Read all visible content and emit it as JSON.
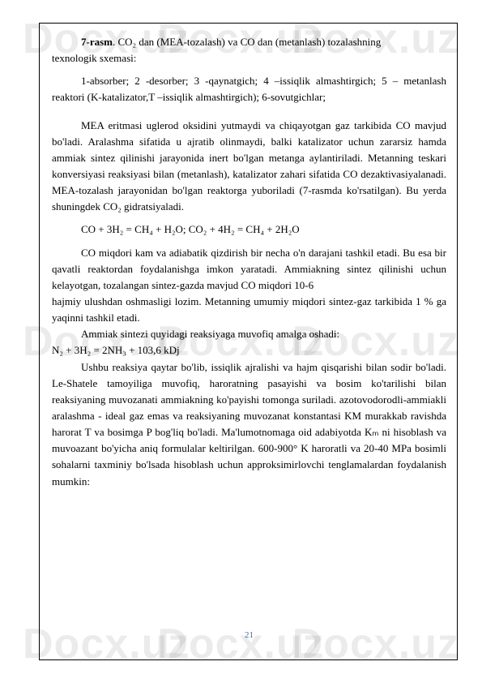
{
  "watermark": "Docx.uz",
  "pageNumber": "21",
  "caption": {
    "label": "7-rasm",
    "line1": ".   CO₂ dan (MEA-tozalash) va CO dan (metanlash) tozalashning",
    "line2": "texnologik sxemasi:"
  },
  "para1": "1-absorber; 2 -desorber; 3 -qaynatgich; 4 –issiqlik almashtirgich; 5 – metanlash reaktori (K-katalizator,T –issiqlik almashtirgich); 6-sovutgichlar;",
  "para2": "MEA eritmasi  uglerod  oksidini  yutmaydi  va  chiqayotgan gaz tarkibida CO mavjud bo'ladi. Aralashma sifatida  u ajratib olinmaydi, balki katalizator uchun zararsiz  hamda  ammiak  sintez  qilinishi  jarayonida  inert  bo'lgan  metanga aylantiriladi.   Metanning   teskari   konversiyasi  reaksiyasi   bilan   (metanlash), katalizator  zahari  sifatida  CO  dezaktivasiyalanadi.  MEA-tozalash  jarayonidan bo'lgan reaktorga yuboriladi (7-rasmda ko'rsatilgan). Bu yerda shuningdek CO₂ gidratsiyaladi.",
  "formula1": "CO + 3H₂ = CH₄ + H₂O;   CO₂ + 4H₂ = CH₄ + 2H₂O",
  "para3a": "CO miqdori kam va adiabatik qizdirish bir necha o'n darajani tashkil  etadi. Bu esa bir qavatli reaktordan  foydalanishga  imkon yaratadi. Ammiakning sintez qilinishi uchun kelayotgan, tozalangan sintez-gazda  mavjud  CO  miqdori  10-6",
  "para3b": "hajmiy   ulushdan  oshmasligi  lozim.  Metanning  umumiy  miqdori  sintez-gaz tarkibida 1 % ga yaqinni tashkil etadi.",
  "para4": "Ammiak sintezi quyidagi reaksiyaga muvofiq amalga oshadi:",
  "formula2": "N₂ + 3H₂ = 2NH₃ + 103,6 kDj",
  "para5": "Ushbu reaksiya qaytar bo'lib, issiqlik ajralishi va hajm qisqarishi bilan sodir bo'ladi.  Le-Shatele  tamoyiliga    muvofiq,  haroratning  pasayishi    va    bosim ko'tarilishi    bilan   reaksiyaning    muvozanati  ammiakning  ko'payishi  tomonga suriladi.  azotovodorodli-ammiakli  aralashma  -  ideal  gaz  emas  va  reaksiyaning muvozanat konstantasi KM murakkab ravishda  harorat T va bosimga P bog'liq bo'ladi. Ma'lumotnomaga oid adabiyotda Kₘ ni hisoblash va muvoazant bo'yicha aniq   formulalar    keltirilgan.    600-900° K  haroratli    va  20-40  MPa  bosimli sohalarni  taxminiy  bo'lsada  hisoblash  uchun  approksimirlovchi  tenglamalardan foydalanish mumkin:",
  "style": {
    "background": "#ffffff",
    "textColor": "#000000",
    "watermarkColor": "rgba(0,0,0,0.08)",
    "pageNumColor": "#3a6fb7",
    "fontFamily": "Times New Roman",
    "fontSize": 13,
    "lineHeight": 1.55
  }
}
